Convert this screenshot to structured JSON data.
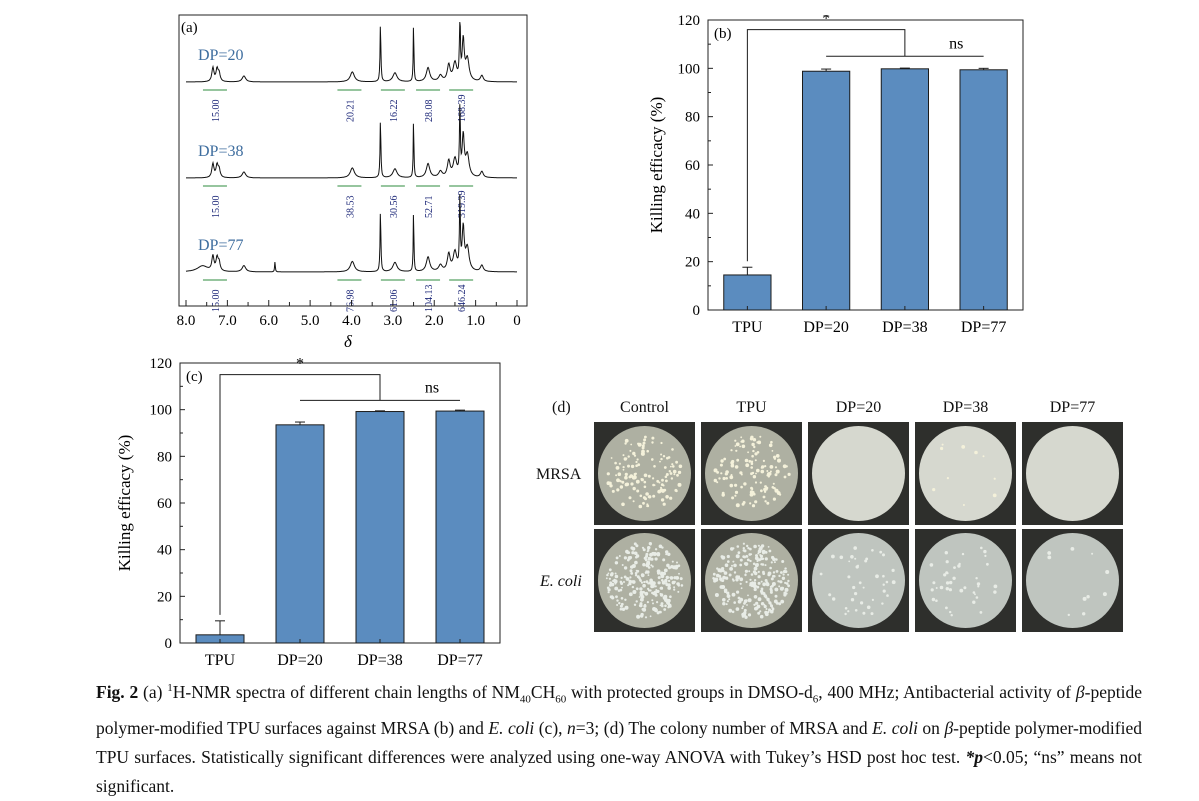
{
  "nmr": {
    "panel_label": "(a)",
    "x_axis_label": "δ",
    "x_ticks": [
      "8.0",
      "7.0",
      "6.0",
      "5.0",
      "4.0",
      "3.0",
      "2.0",
      "1.0",
      "0"
    ],
    "spectra": [
      {
        "label": "DP=20",
        "integrals": [
          "15.00",
          "20.21",
          "16.22",
          "28.08",
          "168.39"
        ]
      },
      {
        "label": "DP=38",
        "integrals": [
          "15.00",
          "38.53",
          "30.56",
          "52.71",
          "319.39"
        ]
      },
      {
        "label": "DP=77",
        "integrals": [
          "15.00",
          "76.98",
          "61.06",
          "104.13",
          "646.24"
        ]
      }
    ],
    "colors": {
      "label": "#3f6e9f",
      "integral": "#1f2a7a",
      "trace": "#111111"
    }
  },
  "chart_data": [
    {
      "panel_label": "(b)",
      "type": "bar",
      "categories": [
        "TPU",
        "DP=20",
        "DP=38",
        "DP=77"
      ],
      "values": [
        14.5,
        98.8,
        99.8,
        99.4
      ],
      "errors": [
        3.2,
        0.9,
        0.3,
        0.6
      ],
      "ylabel": "Killing efficacy (%)",
      "ylim": [
        0,
        120
      ],
      "yticks": [
        0,
        20,
        40,
        60,
        80,
        100,
        120
      ],
      "annotations": {
        "star": "*",
        "ns": "ns"
      },
      "bar_color": "#5b8cbf"
    },
    {
      "panel_label": "(c)",
      "type": "bar",
      "categories": [
        "TPU",
        "DP=20",
        "DP=38",
        "DP=77"
      ],
      "values": [
        3.5,
        93.5,
        99.2,
        99.4
      ],
      "errors": [
        6.0,
        1.2,
        0.3,
        0.4
      ],
      "ylabel": "Killing efficacy (%)",
      "ylim": [
        0,
        120
      ],
      "yticks": [
        0,
        20,
        40,
        60,
        80,
        100,
        120
      ],
      "annotations": {
        "star": "*",
        "ns": "ns"
      },
      "bar_color": "#5b8cbf"
    }
  ],
  "plates": {
    "panel_label": "(d)",
    "columns": [
      "Control",
      "TPU",
      "DP=20",
      "DP=38",
      "DP=77"
    ],
    "rows": [
      {
        "label": "MRSA",
        "italic": false,
        "colony_density": [
          "high",
          "high",
          "none",
          "very-low",
          "none"
        ]
      },
      {
        "label": "E. coli",
        "italic": true,
        "colony_density": [
          "very-high",
          "very-high",
          "low",
          "low",
          "very-low"
        ]
      }
    ]
  },
  "caption": {
    "fig": "Fig. 2",
    "t1": "  (a) ",
    "sup1": "1",
    "t2": "H-NMR spectra of different chain lengths of NM",
    "sub1": "40",
    "t3": "CH",
    "sub2": "60",
    "t4": " with protected groups in DMSO-d",
    "sub3": "6",
    "t5": ", 400 MHz; Antibacterial activity of ",
    "beta1": "β",
    "t6": "-peptide polymer-modified TPU surfaces against MRSA (b) and ",
    "ecoli1": "E. coli",
    "t7": " (c), ",
    "n": "n",
    "t8": "=3; (d) The colony number of MRSA and ",
    "ecoli2": "E. coli",
    "t9": " on ",
    "beta2": "β",
    "t10": "-peptide polymer-modified TPU surfaces. Statistically significant differences were analyzed using one-way ANOVA with Tukey’s HSD post hoc test. ",
    "star": "*",
    "p": "p",
    "t11": "<0.05; “ns” means not significant."
  }
}
